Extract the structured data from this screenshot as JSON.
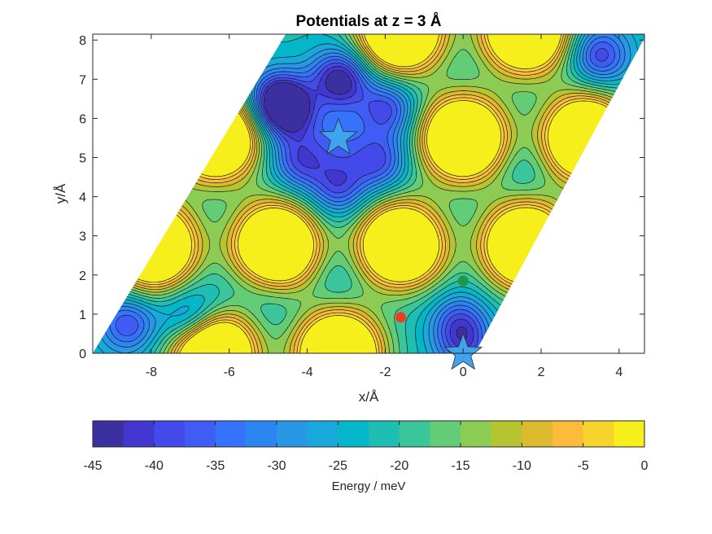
{
  "chart_data": {
    "type": "heatmap",
    "subtype": "filled-contour",
    "title": "Potentials at z = 3 Å",
    "xlabel": "x/Å",
    "ylabel": "y/Å",
    "xlim": [
      -9.5,
      4.65
    ],
    "ylim": [
      0,
      8.15
    ],
    "x_ticks": [
      -8,
      -6,
      -4,
      -2,
      0,
      2,
      4
    ],
    "x_tick_labels": [
      "-8",
      "-6",
      "-4",
      "-2",
      "0",
      "2",
      "4"
    ],
    "y_ticks": [
      0,
      1,
      2,
      3,
      4,
      5,
      6,
      7,
      8
    ],
    "y_tick_labels": [
      "0",
      "1",
      "2",
      "3",
      "4",
      "5",
      "6",
      "7",
      "8"
    ],
    "grid": false,
    "domain_shape": "parallelogram",
    "domain_vertices": [
      [
        -9.5,
        0
      ],
      [
        0.3,
        0
      ],
      [
        4.7,
        8.15
      ],
      [
        -4.55,
        8.15
      ]
    ],
    "colorbar": {
      "label": "Energy / meV",
      "location": "below",
      "range": [
        -45,
        0
      ],
      "ticks": [
        -45,
        -40,
        -35,
        -30,
        -25,
        -20,
        -15,
        -10,
        -5,
        0
      ],
      "tick_labels": [
        "-45",
        "-40",
        "-35",
        "-30",
        "-25",
        "-20",
        "-15",
        "-10",
        "-5",
        "0"
      ],
      "levels": [
        -45,
        -42.5,
        -40,
        -37.5,
        -35,
        -32.5,
        -30,
        -27.5,
        -25,
        -22.5,
        -20,
        -17.5,
        -15,
        -12.5,
        -10,
        -7.5,
        -5,
        -2.5,
        0
      ],
      "colors": [
        "#3c2fa0",
        "#4136cf",
        "#434ae9",
        "#3f5df5",
        "#3572fd",
        "#2c86f2",
        "#2797e6",
        "#18a8dc",
        "#04b6c9",
        "#1ebfb2",
        "#3ac69a",
        "#62cc77",
        "#8ccc55",
        "#b7c431",
        "#dcb92d",
        "#fcbb3a",
        "#f6d42d",
        "#f7ef1c"
      ]
    },
    "minima": [
      {
        "x": -3.15,
        "y": 7.0,
        "value": -44
      },
      {
        "x": -4.75,
        "y": 6.45,
        "value": -43
      },
      {
        "x": 3.5,
        "y": 7.6,
        "value": -38
      },
      {
        "x": -8.6,
        "y": 0.75,
        "value": -36
      },
      {
        "x": -7.0,
        "y": 0.85,
        "value": -35
      },
      {
        "x": -0.1,
        "y": 0.8,
        "value": -34
      },
      {
        "x": 0.05,
        "y": 0.15,
        "value": -32
      },
      {
        "x": -3.2,
        "y": 5.5,
        "value": -28
      },
      {
        "x": -1.95,
        "y": 6.25,
        "value": -37
      },
      {
        "x": -4.45,
        "y": 6.15,
        "value": -36
      },
      {
        "x": -4.2,
        "y": 4.9,
        "value": -36
      },
      {
        "x": -2.15,
        "y": 4.9,
        "value": -36
      },
      {
        "x": -3.2,
        "y": 4.25,
        "value": -36
      },
      {
        "x": -5.2,
        "y": 1.9,
        "value": -23
      },
      {
        "x": -3.2,
        "y": 1.9,
        "value": -23
      },
      {
        "x": -1.6,
        "y": 1.9,
        "value": -22
      },
      {
        "x": -6.4,
        "y": 1.3,
        "value": -23
      },
      {
        "x": -4.8,
        "y": 1.2,
        "value": -22
      },
      {
        "x": 1.5,
        "y": 4.7,
        "value": -23
      },
      {
        "x": 0.0,
        "y": 6.5,
        "value": -21
      }
    ],
    "maxima": [
      {
        "x": -6.4,
        "y": 0.0,
        "value": 0
      },
      {
        "x": -3.2,
        "y": 0.0,
        "value": 0
      },
      {
        "x": -7.95,
        "y": 2.75,
        "value": 0
      },
      {
        "x": -4.8,
        "y": 2.75,
        "value": 0
      },
      {
        "x": -1.6,
        "y": 2.75,
        "value": 0
      },
      {
        "x": 1.6,
        "y": 2.75,
        "value": 0
      },
      {
        "x": -6.35,
        "y": 5.5,
        "value": 0
      },
      {
        "x": 0.0,
        "y": 5.5,
        "value": 0
      },
      {
        "x": 3.15,
        "y": 5.5,
        "value": 0
      },
      {
        "x": -1.6,
        "y": 8.25,
        "value": 0
      },
      {
        "x": 1.6,
        "y": 8.25,
        "value": 0
      }
    ],
    "markers": [
      {
        "shape": "star",
        "color": "#3fa3ee",
        "x": -3.2,
        "y": 5.5
      },
      {
        "shape": "star",
        "color": "#3fa3ee",
        "x": 0.0,
        "y": 0.0
      },
      {
        "shape": "circle",
        "color": "#f03c1a",
        "x": -1.6,
        "y": 0.92
      },
      {
        "shape": "circle",
        "color": "#1a9a48",
        "x": 0.0,
        "y": 1.85
      }
    ]
  }
}
